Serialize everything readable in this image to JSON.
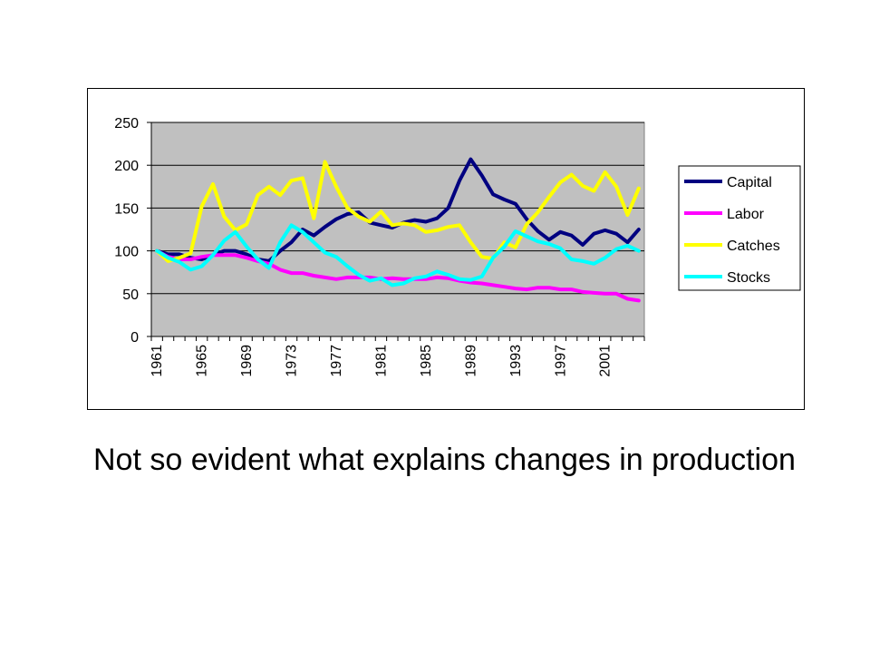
{
  "caption": "Not so evident what explains changes in production",
  "chart_data": {
    "type": "line",
    "title": "",
    "xlabel": "",
    "ylabel": "",
    "ylim": [
      0,
      250
    ],
    "yticks": [
      "0",
      "50",
      "100",
      "150",
      "200",
      "250"
    ],
    "x": [
      1961,
      1962,
      1963,
      1964,
      1965,
      1966,
      1967,
      1968,
      1969,
      1970,
      1971,
      1972,
      1973,
      1974,
      1975,
      1976,
      1977,
      1978,
      1979,
      1980,
      1981,
      1982,
      1983,
      1984,
      1985,
      1986,
      1987,
      1988,
      1989,
      1990,
      1991,
      1992,
      1993,
      1994,
      1995,
      1996,
      1997,
      1998,
      1999,
      2000,
      2001,
      2002,
      2003,
      2004
    ],
    "xtick_labels": [
      "1961",
      "1965",
      "1969",
      "1973",
      "1977",
      "1981",
      "1985",
      "1989",
      "1993",
      "1997",
      "2001"
    ],
    "grid": true,
    "plot_background": "#c0c0c0",
    "legend_position": "right",
    "series": [
      {
        "name": "Capital",
        "color": "#000080",
        "values": [
          100,
          96,
          96,
          92,
          90,
          95,
          100,
          100,
          96,
          90,
          88,
          100,
          110,
          125,
          118,
          128,
          137,
          143,
          145,
          133,
          130,
          127,
          133,
          136,
          134,
          138,
          150,
          182,
          207,
          188,
          166,
          160,
          155,
          137,
          123,
          113,
          122,
          118,
          107,
          120,
          124,
          120,
          110,
          125
        ]
      },
      {
        "name": "Labor",
        "color": "#ff00ff",
        "values": [
          100,
          93,
          90,
          90,
          93,
          95,
          95,
          95,
          92,
          88,
          85,
          78,
          74,
          74,
          71,
          69,
          67,
          69,
          69,
          69,
          67,
          68,
          67,
          67,
          67,
          69,
          68,
          65,
          63,
          62,
          60,
          58,
          56,
          55,
          57,
          57,
          55,
          55,
          52,
          51,
          50,
          50,
          44,
          42
        ]
      },
      {
        "name": "Catches",
        "color": "#ffff00",
        "values": [
          100,
          88,
          92,
          97,
          152,
          178,
          140,
          124,
          131,
          165,
          175,
          165,
          182,
          185,
          138,
          204,
          175,
          150,
          140,
          134,
          146,
          130,
          132,
          130,
          122,
          124,
          128,
          130,
          110,
          93,
          91,
          110,
          104,
          131,
          145,
          163,
          180,
          189,
          176,
          170,
          192,
          175,
          142,
          173
        ]
      },
      {
        "name": "Stocks",
        "color": "#00ffff",
        "values": [
          100,
          92,
          87,
          78,
          82,
          95,
          112,
          122,
          105,
          90,
          80,
          110,
          130,
          122,
          110,
          98,
          93,
          82,
          72,
          65,
          68,
          60,
          62,
          68,
          70,
          76,
          72,
          67,
          66,
          70,
          92,
          105,
          123,
          117,
          111,
          108,
          103,
          90,
          88,
          85,
          92,
          102,
          106,
          100
        ]
      }
    ]
  }
}
